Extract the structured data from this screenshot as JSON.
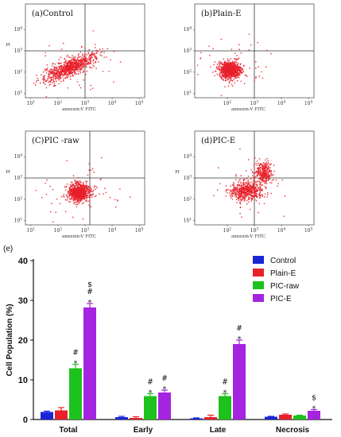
{
  "chart_data": [
    {
      "type": "scatter",
      "panel_label": "(a)Control",
      "xlabel": "annexin-V FITC",
      "ylabel": "PI",
      "x_ticks": [
        "10^1",
        "10^2",
        "10^3",
        "10^4",
        "10^5"
      ],
      "y_ticks": [
        "10^1",
        "10^2",
        "10^3",
        "10^4"
      ],
      "quadrant_x": 1000,
      "quadrant_y": 1000,
      "cluster": {
        "center_x": 280,
        "center_y": 160,
        "spread": "diagonal-wide"
      },
      "color": "#e8202a"
    },
    {
      "type": "scatter",
      "panel_label": "(b)Plain-E",
      "xlabel": "annexin-V FITC",
      "ylabel": "",
      "x_ticks": [
        "10^2",
        "10^3",
        "10^4",
        "10^5"
      ],
      "y_ticks": [
        "10^1",
        "10^2",
        "10^3",
        "10^4"
      ],
      "quadrant_x": 1000,
      "quadrant_y": 1000,
      "cluster": {
        "center_x": 130,
        "center_y": 130,
        "spread": "compact"
      },
      "color": "#e8202a"
    },
    {
      "type": "scatter",
      "panel_label": "(C)PIC -raw",
      "xlabel": "annexin-V FITC",
      "ylabel": "PI",
      "x_ticks": [
        "10^1",
        "10^2",
        "10^3",
        "10^4",
        "10^5"
      ],
      "y_ticks": [
        "10^1",
        "10^2",
        "10^3",
        "10^4"
      ],
      "quadrant_x": 1500,
      "quadrant_y": 1000,
      "cluster": {
        "center_x": 600,
        "center_y": 200,
        "spread": "compact"
      },
      "color": "#e8202a"
    },
    {
      "type": "scatter",
      "panel_label": "(d)PIC-E",
      "xlabel": "annexin-V FITC",
      "ylabel": "PI",
      "x_ticks": [
        "10^2",
        "10^3",
        "10^4",
        "10^5"
      ],
      "y_ticks": [
        "10^1",
        "10^2",
        "10^3",
        "10^4"
      ],
      "quadrant_x": 1000,
      "quadrant_y": 1000,
      "cluster": {
        "center_x": 500,
        "center_y": 250,
        "spread": "two-population"
      },
      "color": "#e8202a"
    },
    {
      "type": "bar",
      "panel_label": "(e)",
      "title": "",
      "xlabel": "",
      "ylabel": "Cell Population (%)",
      "ylim": [
        0,
        40
      ],
      "yticks": [
        0,
        10,
        20,
        30,
        40
      ],
      "categories": [
        "Total",
        "Early",
        "Late",
        "Necrosis"
      ],
      "legend_position": "top-right",
      "series": [
        {
          "name": "Control",
          "color": "#1a26d6",
          "values": [
            1.9,
            0.6,
            0.3,
            0.7
          ],
          "errors": [
            0.2,
            0.2,
            0.1,
            0.1
          ]
        },
        {
          "name": "Plain-E",
          "color": "#e8202a",
          "values": [
            2.3,
            0.4,
            0.6,
            1.2
          ],
          "errors": [
            0.7,
            0.3,
            0.5,
            0.2
          ]
        },
        {
          "name": "PIC-raw",
          "color": "#1dc21d",
          "values": [
            12.9,
            5.9,
            5.9,
            1.0
          ],
          "errors": [
            1.0,
            0.6,
            0.6,
            0.1
          ]
        },
        {
          "name": "PIC-E",
          "color": "#a524e0",
          "values": [
            28.2,
            6.8,
            19.0,
            2.2
          ],
          "errors": [
            1.0,
            0.6,
            1.0,
            0.3
          ]
        }
      ],
      "annotations": [
        {
          "category": "Total",
          "series": "PIC-raw",
          "symbols": [
            "*",
            "#"
          ]
        },
        {
          "category": "Total",
          "series": "PIC-E",
          "symbols": [
            "*",
            "#",
            "$"
          ]
        },
        {
          "category": "Early",
          "series": "PIC-raw",
          "symbols": [
            "*",
            "#"
          ]
        },
        {
          "category": "Early",
          "series": "PIC-E",
          "symbols": [
            "*",
            "#"
          ]
        },
        {
          "category": "Late",
          "series": "PIC-raw",
          "symbols": [
            "*",
            "#"
          ]
        },
        {
          "category": "Late",
          "series": "PIC-E",
          "symbols": [
            "*",
            "#"
          ]
        },
        {
          "category": "Necrosis",
          "series": "PIC-E",
          "symbols": [
            "*",
            "$"
          ]
        }
      ]
    }
  ]
}
